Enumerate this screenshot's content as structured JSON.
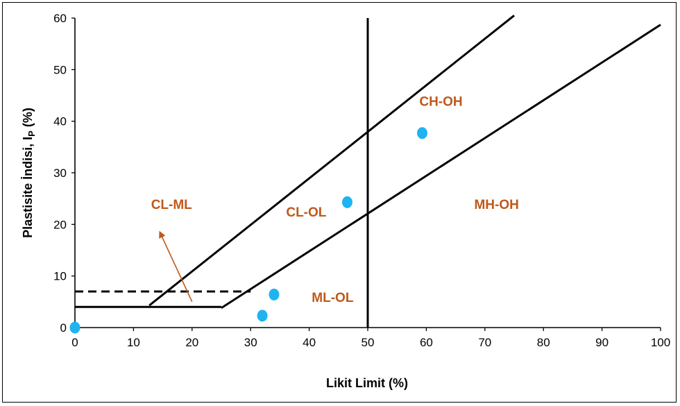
{
  "chart_data": {
    "type": "scatter",
    "xlabel": "Likit Limit (%)",
    "ylabel_main": "Plastisite İndisi, I",
    "ylabel_sub": "P",
    "ylabel_tail": " (%)",
    "xlim": [
      0,
      100
    ],
    "ylim": [
      0,
      60
    ],
    "xticks": [
      0,
      10,
      20,
      30,
      40,
      50,
      60,
      70,
      80,
      90,
      100
    ],
    "yticks": [
      0,
      10,
      20,
      30,
      40,
      50,
      60
    ],
    "grid": false,
    "point_color": "#1fb4f0",
    "region_color": "#c0581a",
    "points": [
      {
        "x": 0,
        "y": 0
      },
      {
        "x": 32,
        "y": 2.3
      },
      {
        "x": 34,
        "y": 6.4
      },
      {
        "x": 46.5,
        "y": 24.3
      },
      {
        "x": 59.3,
        "y": 37.7
      }
    ],
    "lines": [
      {
        "name": "u-line",
        "style": "solid",
        "points": [
          [
            12.7,
            4.3
          ],
          [
            75,
            60.5
          ]
        ]
      },
      {
        "name": "a-line",
        "style": "solid",
        "points": [
          [
            25,
            3.8
          ],
          [
            100,
            58.7
          ]
        ]
      },
      {
        "name": "liquid-limit-50",
        "style": "solid",
        "points": [
          [
            50,
            0
          ],
          [
            50,
            60
          ]
        ]
      },
      {
        "name": "ip-4-line",
        "style": "solid",
        "points": [
          [
            0,
            4
          ],
          [
            25,
            4
          ]
        ]
      },
      {
        "name": "ip-7-line",
        "style": "dashed",
        "points": [
          [
            0,
            7
          ],
          [
            30,
            7
          ]
        ]
      }
    ],
    "regions": [
      {
        "label": "CL-ML",
        "x": 16.5,
        "y": 23
      },
      {
        "label": "CL-OL",
        "x": 39.5,
        "y": 21.5
      },
      {
        "label": "CH-OH",
        "x": 62.5,
        "y": 43
      },
      {
        "label": "MH-OH",
        "x": 72,
        "y": 23
      },
      {
        "label": "ML-OL",
        "x": 44,
        "y": 5
      }
    ],
    "arrow": {
      "color": "#c0581a",
      "from": [
        20,
        5
      ],
      "to": [
        14.5,
        18.5
      ]
    }
  }
}
